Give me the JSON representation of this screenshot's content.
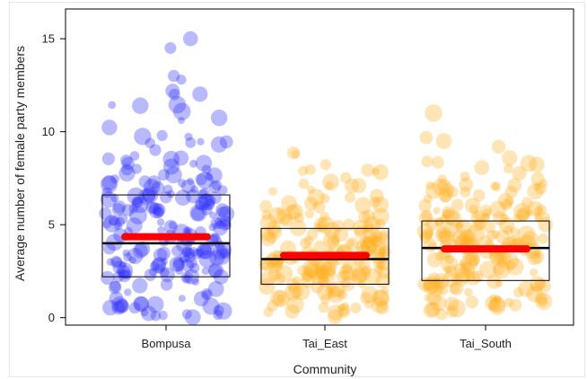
{
  "chart_data": {
    "type": "scatter",
    "style": "jittered bubble points with box and mean bar per category",
    "title": "",
    "xlabel": "Community",
    "ylabel": "Average number of female party members",
    "categories": [
      "Bompusa",
      "Tai_East",
      "Tai_South"
    ],
    "ylim": [
      -0.4,
      16.6
    ],
    "yticks": [
      0,
      5,
      10,
      15
    ],
    "grid": false,
    "legend": "none",
    "groups": [
      {
        "name": "Bompusa",
        "color": "#2a2aff",
        "box": {
          "q1": 2.2,
          "median": 4.0,
          "q3": 6.6
        },
        "mean": 4.35,
        "min": 0.0,
        "max": 15.0,
        "n": 230,
        "outliers": [
          15.0,
          14.5,
          13.0,
          12.8,
          12.2,
          12.0,
          11.4
        ]
      },
      {
        "name": "Tai_East",
        "color": "#ffb020",
        "box": {
          "q1": 1.8,
          "median": 3.15,
          "q3": 4.8
        },
        "mean": 3.35,
        "min": 0.0,
        "max": 8.8,
        "n": 200,
        "outliers": [
          8.8
        ]
      },
      {
        "name": "Tai_South",
        "color": "#ffb020",
        "box": {
          "q1": 2.0,
          "median": 3.75,
          "q3": 5.2
        },
        "mean": 3.7,
        "min": 0.1,
        "max": 11.0,
        "n": 210,
        "outliers": [
          11.0,
          9.5,
          8.3
        ]
      }
    ]
  }
}
